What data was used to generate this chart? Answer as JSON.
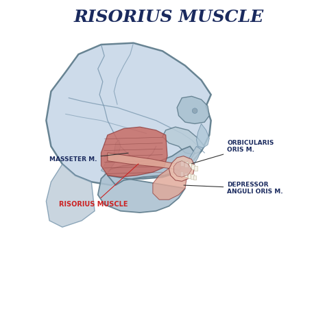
{
  "title": "RISORIUS MUSCLE",
  "title_color": "#1a2a5e",
  "title_fontsize": 18,
  "bg_color": "#ffffff",
  "skull_fill": "#c8d8e8",
  "skull_edge": "#7090a8",
  "skull_edge2": "#5a7888",
  "muscle_red": "#c86860",
  "muscle_light": "#e0a898",
  "muscle_pale": "#eac0b0",
  "jaw_fill": "#b0c8d8",
  "label_masseter": "MASSETER M.",
  "label_risorius": "RISORIUS MUSCLE",
  "label_orbicularis": "ORBICULARIS\nORIS M.",
  "label_depressor": "DEPRESSOR\nANGULI ORIS M.",
  "label_color_default": "#1a2a5e",
  "label_color_risorius": "#cc2222",
  "label_fontsize": 6.5
}
